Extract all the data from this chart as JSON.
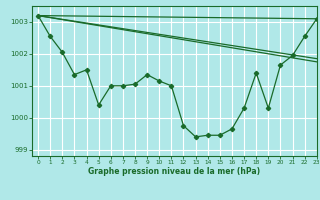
{
  "background_color": "#b0e8e8",
  "grid_color": "#ffffff",
  "line_color": "#1a6b2a",
  "title": "Graphe pression niveau de la mer (hPa)",
  "xlim": [
    -0.5,
    23
  ],
  "ylim": [
    998.8,
    1003.5
  ],
  "yticks": [
    999,
    1000,
    1001,
    1002,
    1003
  ],
  "xticks": [
    0,
    1,
    2,
    3,
    4,
    5,
    6,
    7,
    8,
    9,
    10,
    11,
    12,
    13,
    14,
    15,
    16,
    17,
    18,
    19,
    20,
    21,
    22,
    23
  ],
  "main_x": [
    0,
    1,
    2,
    3,
    4,
    5,
    6,
    7,
    8,
    9,
    10,
    11,
    12,
    13,
    14,
    15,
    16,
    17,
    18,
    19,
    20,
    21,
    22,
    23
  ],
  "main_y": [
    1003.2,
    1002.55,
    1002.05,
    1001.35,
    1001.5,
    1000.4,
    1001.0,
    1001.0,
    1001.05,
    1001.35,
    1001.15,
    1001.0,
    999.75,
    999.4,
    999.45,
    999.45,
    999.65,
    1000.3,
    1001.4,
    1000.3,
    1001.65,
    1001.95,
    1002.55,
    1003.1
  ],
  "line1_x": [
    0,
    23
  ],
  "line1_y": [
    1003.2,
    1003.1
  ],
  "line2_x": [
    0,
    23
  ],
  "line2_y": [
    1003.2,
    1001.85
  ],
  "line3_x": [
    0,
    23
  ],
  "line3_y": [
    1003.2,
    1001.75
  ]
}
